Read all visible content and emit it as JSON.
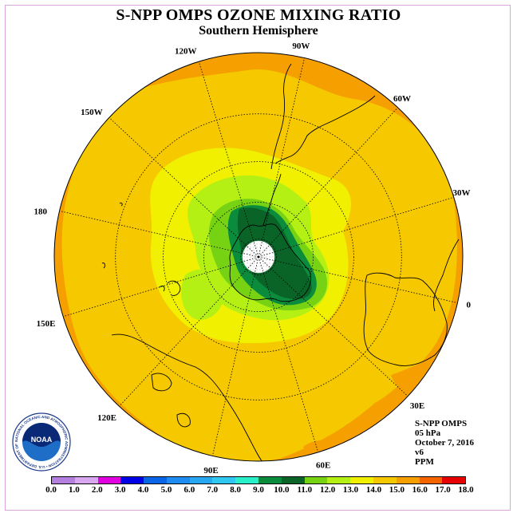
{
  "header": {
    "title": "S-NPP OMPS OZONE MIXING RATIO",
    "subtitle": "Southern Hemisphere"
  },
  "map": {
    "projection": "polar-stereographic",
    "hemisphere": "south",
    "longitude_labels": [
      "90W",
      "60W",
      "30W",
      "0",
      "30E",
      "60E",
      "90E",
      "120E",
      "150E",
      "180",
      "150W",
      "120W"
    ],
    "longitude_degrees": [
      -90,
      -60,
      -30,
      0,
      30,
      60,
      90,
      120,
      150,
      180,
      -150,
      -120
    ],
    "latitude_circles": [
      -80,
      -60,
      -40,
      -20
    ]
  },
  "info": {
    "satellite": "S-NPP OMPS",
    "level": "05 hPa",
    "date": "October 7, 2016",
    "version": "v6",
    "units": "PPM"
  },
  "colorbar": {
    "labels": [
      "0.0",
      "1.0",
      "2.0",
      "3.0",
      "4.0",
      "5.0",
      "6.0",
      "7.0",
      "8.0",
      "9.0",
      "10.0",
      "11.0",
      "12.0",
      "13.0",
      "14.0",
      "15.0",
      "16.0",
      "17.0",
      "18.0"
    ],
    "colors": [
      "#b57fe0",
      "#d9a6f0",
      "#e000e0",
      "#0000e6",
      "#0a64e6",
      "#1e8cf0",
      "#28a8f0",
      "#30c8f0",
      "#28f0c8",
      "#0a8c3c",
      "#0a6428",
      "#78d214",
      "#b4f014",
      "#f0f000",
      "#f5c800",
      "#f5a000",
      "#f56400",
      "#e60000",
      "#8c5a46"
    ]
  },
  "logo": {
    "text": "NOAA",
    "ring_text": "NATIONAL OCEANIC AND ATMOSPHERIC ADMINISTRATION • U.S. DEPARTMENT OF COMMERCE"
  }
}
